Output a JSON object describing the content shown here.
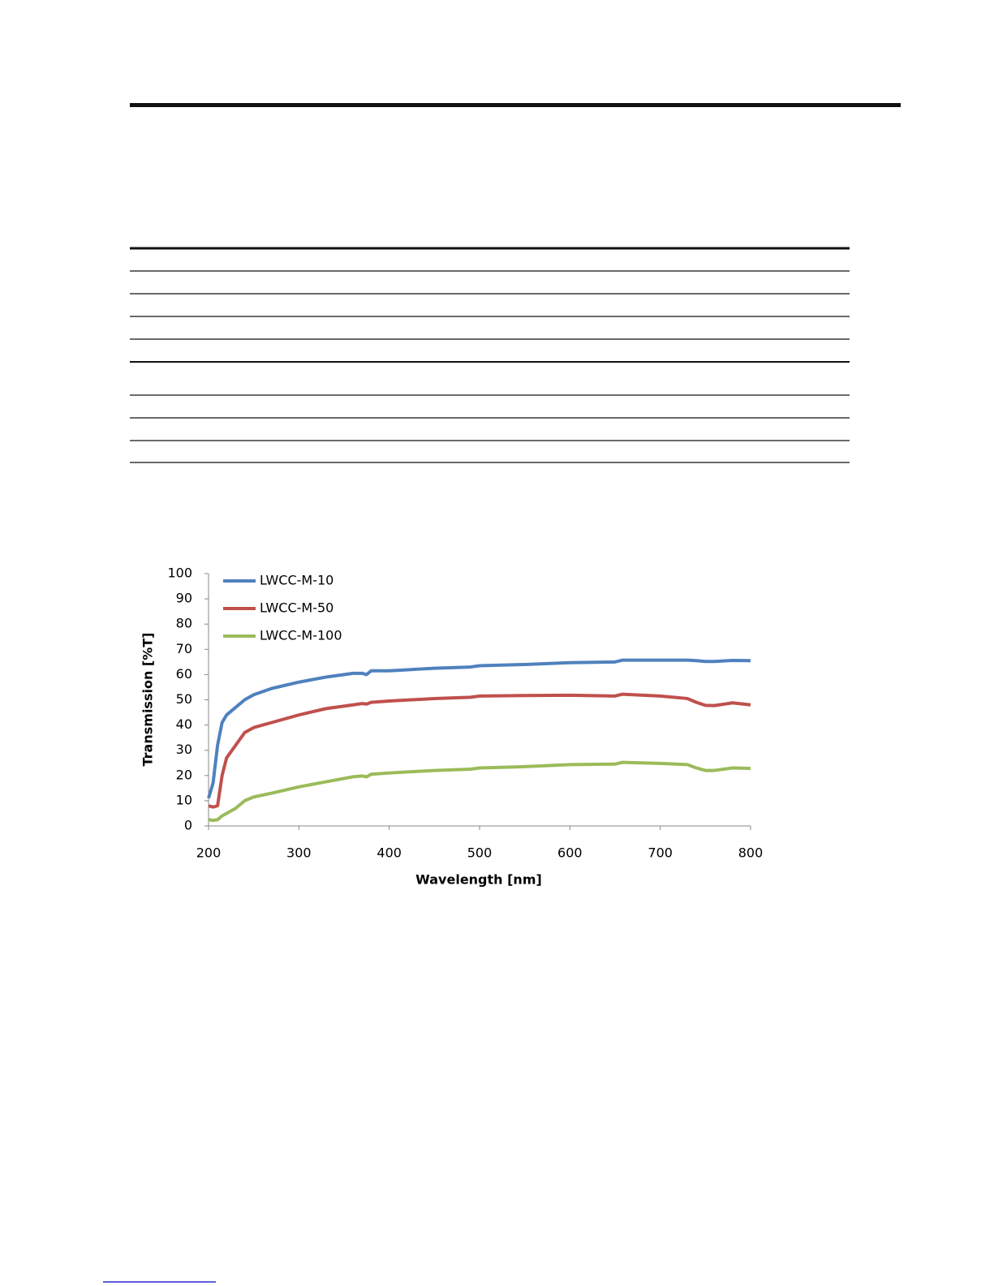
{
  "chart_data": {
    "type": "line",
    "xlabel": "Wavelength [nm]",
    "ylabel": "Transmission [%T]",
    "x": [
      200,
      205,
      210,
      215,
      220,
      230,
      240,
      250,
      270,
      300,
      330,
      360,
      370,
      375,
      380,
      400,
      450,
      490,
      500,
      550,
      600,
      650,
      658,
      700,
      730,
      740,
      750,
      760,
      780,
      800
    ],
    "series": [
      {
        "name": "LWCC-M-10",
        "color": "#4f81bd",
        "values": [
          11,
          17,
          32,
          41,
          44,
          47,
          50,
          52,
          54.5,
          57,
          59,
          60.5,
          60.5,
          60,
          61.5,
          61.5,
          62.5,
          63,
          63.5,
          64,
          64.7,
          65,
          65.7,
          65.7,
          65.7,
          65.5,
          65.2,
          65.2,
          65.6,
          65.5
        ]
      },
      {
        "name": "LWCC-M-50",
        "color": "#c0504d",
        "values": [
          8,
          7.5,
          8,
          20,
          27,
          32,
          37,
          39,
          41,
          44,
          46.5,
          48,
          48.5,
          48.3,
          49,
          49.5,
          50.5,
          51,
          51.5,
          51.7,
          51.8,
          51.5,
          52.2,
          51.5,
          50.5,
          49,
          47.8,
          47.7,
          48.8,
          48
        ]
      },
      {
        "name": "LWCC-M-100",
        "color": "#9bbb59",
        "values": [
          2.5,
          2.2,
          2.5,
          4,
          5,
          7,
          10,
          11.5,
          13,
          15.5,
          17.5,
          19.5,
          19.8,
          19.5,
          20.5,
          21,
          22,
          22.5,
          23,
          23.5,
          24.3,
          24.5,
          25.2,
          24.8,
          24.3,
          23,
          22,
          22,
          23,
          22.8
        ]
      }
    ],
    "xlim": [
      200,
      800
    ],
    "xticks": [
      200,
      300,
      400,
      500,
      600,
      700,
      800
    ],
    "ylim": [
      0,
      100
    ],
    "yticks": [
      0,
      10,
      20,
      30,
      40,
      50,
      60,
      70,
      80,
      90,
      100
    ],
    "legend": "upper left"
  }
}
